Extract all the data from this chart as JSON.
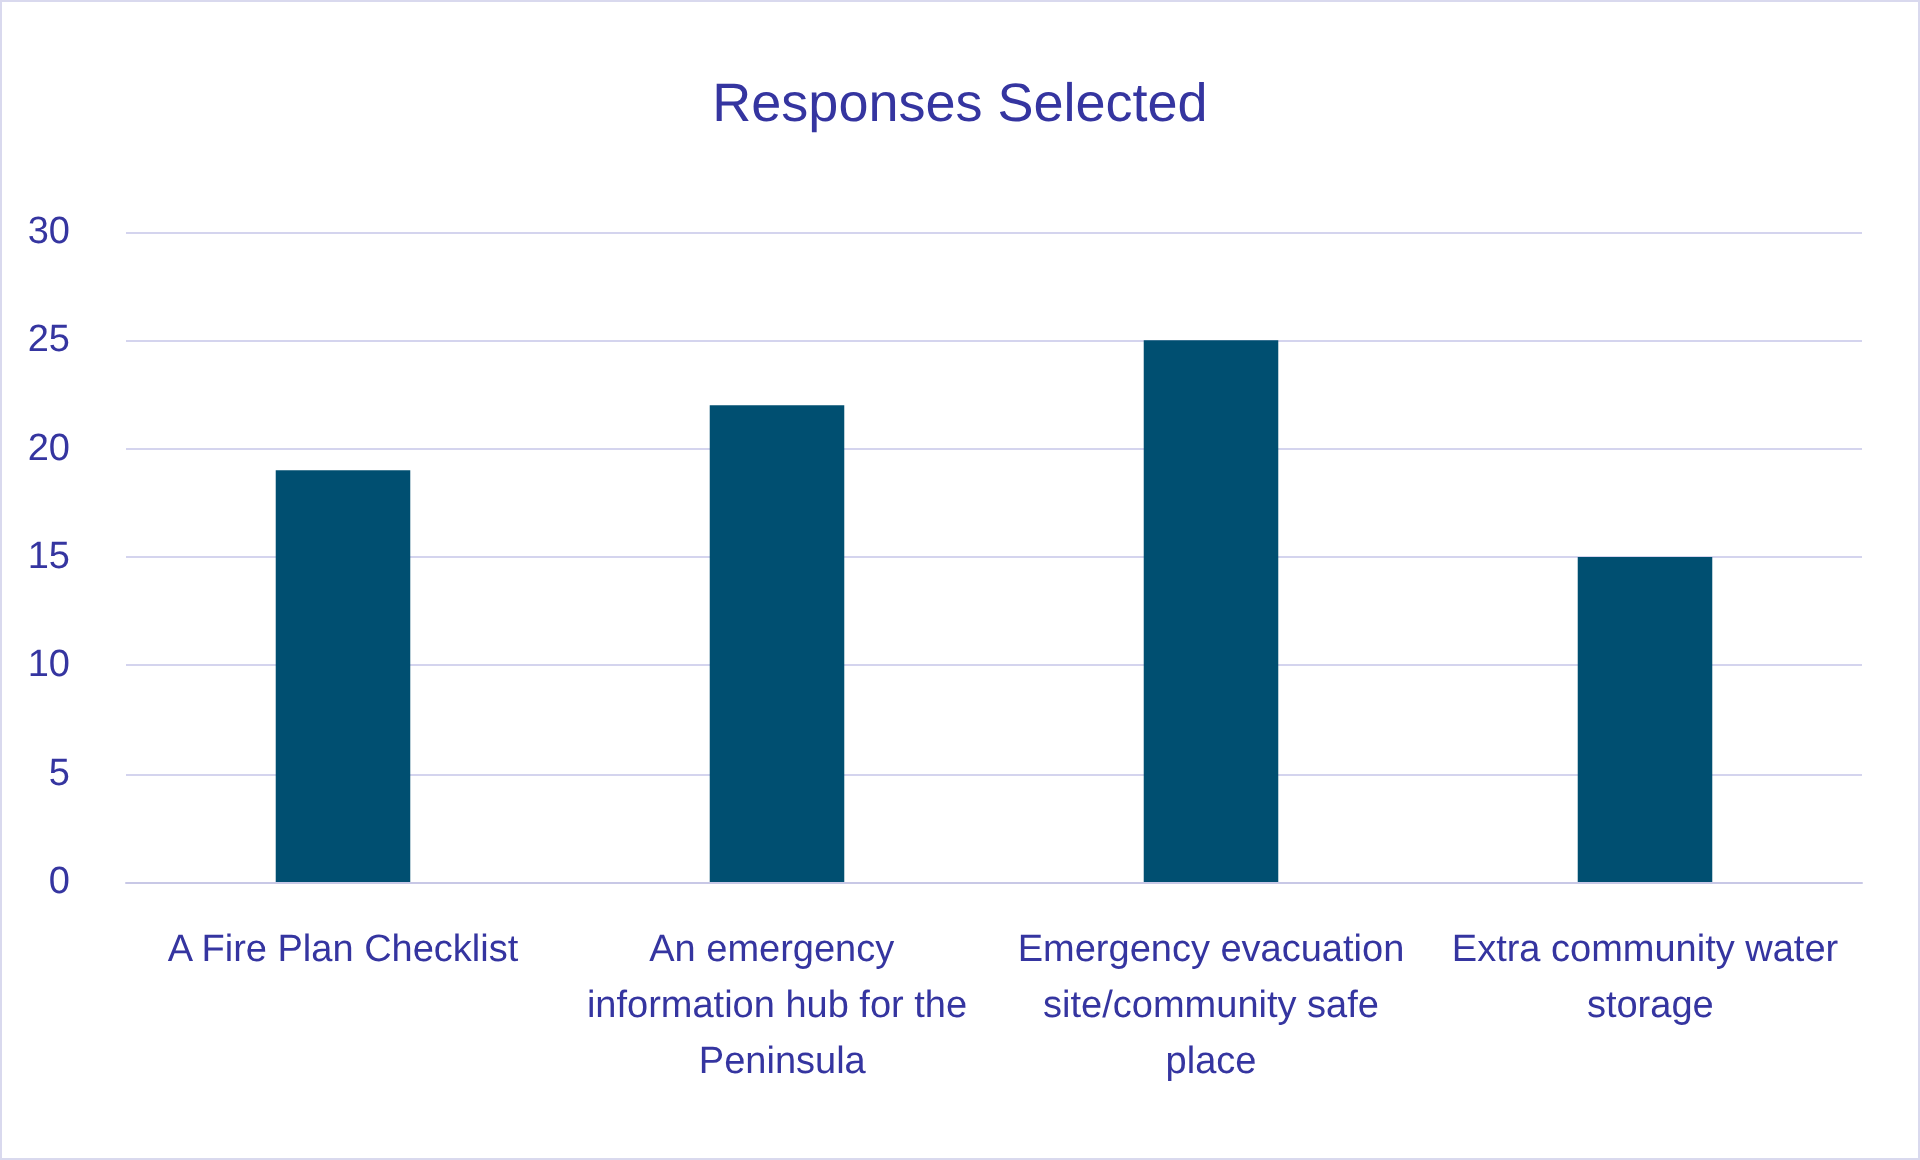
{
  "chart_data": {
    "type": "bar",
    "title": "Responses Selected",
    "categories": [
      "A Fire Plan Checklist",
      "An emergency information hub for the Peninsula",
      "Emergency evacuation site/community safe place",
      "Extra community water storage"
    ],
    "values": [
      19,
      22,
      25,
      15
    ],
    "color": "#004f71",
    "ylim": [
      0,
      30
    ],
    "yticks": [
      0,
      5,
      10,
      15,
      20,
      25,
      30
    ],
    "grid": "y"
  }
}
